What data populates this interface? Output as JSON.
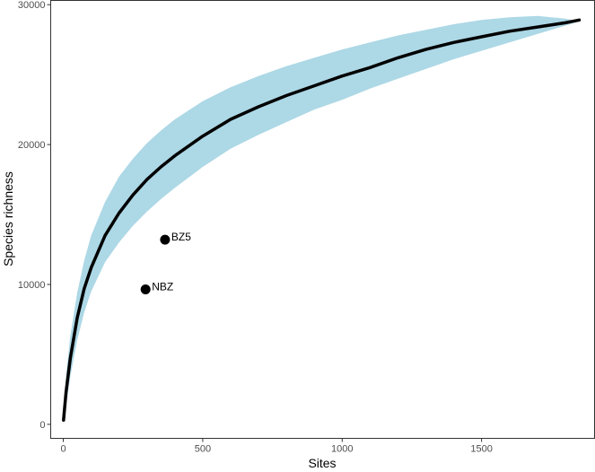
{
  "chart_data": {
    "type": "line",
    "title": "",
    "xlabel": "Sites",
    "ylabel": "Species richness",
    "xlim": [
      -45,
      1905
    ],
    "ylim": [
      -1000,
      30300
    ],
    "x_ticks": [
      0,
      500,
      1000,
      1500
    ],
    "y_ticks": [
      0,
      10000,
      20000,
      30000
    ],
    "x_tick_labels": [
      "0",
      "500",
      "1000",
      "1500"
    ],
    "y_tick_labels": [
      "0",
      "10000",
      "20000",
      "30000"
    ],
    "grid": false,
    "legend": "none",
    "series": [
      {
        "kind": "ribbon",
        "color": "#add8e6",
        "x": [
          1,
          10,
          25,
          50,
          75,
          100,
          150,
          200,
          250,
          300,
          350,
          400,
          500,
          600,
          700,
          800,
          900,
          1000,
          1100,
          1200,
          1300,
          1400,
          1500,
          1600,
          1700,
          1800,
          1850
        ],
        "lower": [
          0,
          1300,
          3400,
          6000,
          8000,
          9500,
          11600,
          13000,
          14200,
          15200,
          16100,
          16900,
          18400,
          19700,
          20700,
          21600,
          22500,
          23200,
          24000,
          24700,
          25400,
          26100,
          26700,
          27300,
          27900,
          28500,
          28800
        ],
        "upper": [
          700,
          3500,
          6300,
          9400,
          11700,
          13500,
          15900,
          17700,
          19000,
          20100,
          21000,
          21800,
          23100,
          24100,
          24900,
          25600,
          26200,
          26800,
          27300,
          27800,
          28200,
          28600,
          28900,
          29100,
          29200,
          29000,
          28800
        ]
      },
      {
        "kind": "line",
        "color": "#000000",
        "x": [
          1,
          10,
          25,
          50,
          75,
          100,
          150,
          200,
          250,
          300,
          350,
          400,
          500,
          600,
          700,
          800,
          900,
          1000,
          1100,
          1200,
          1300,
          1400,
          1500,
          1600,
          1700,
          1800,
          1850
        ],
        "values": [
          300,
          2300,
          4700,
          7600,
          9700,
          11200,
          13500,
          15100,
          16400,
          17500,
          18400,
          19200,
          20600,
          21800,
          22700,
          23500,
          24200,
          24900,
          25500,
          26200,
          26800,
          27300,
          27700,
          28100,
          28400,
          28700,
          28900
        ]
      }
    ],
    "points": [
      {
        "label": "BZ5",
        "x": 365,
        "y": 13200
      },
      {
        "label": "NBZ",
        "x": 295,
        "y": 9650
      }
    ]
  }
}
